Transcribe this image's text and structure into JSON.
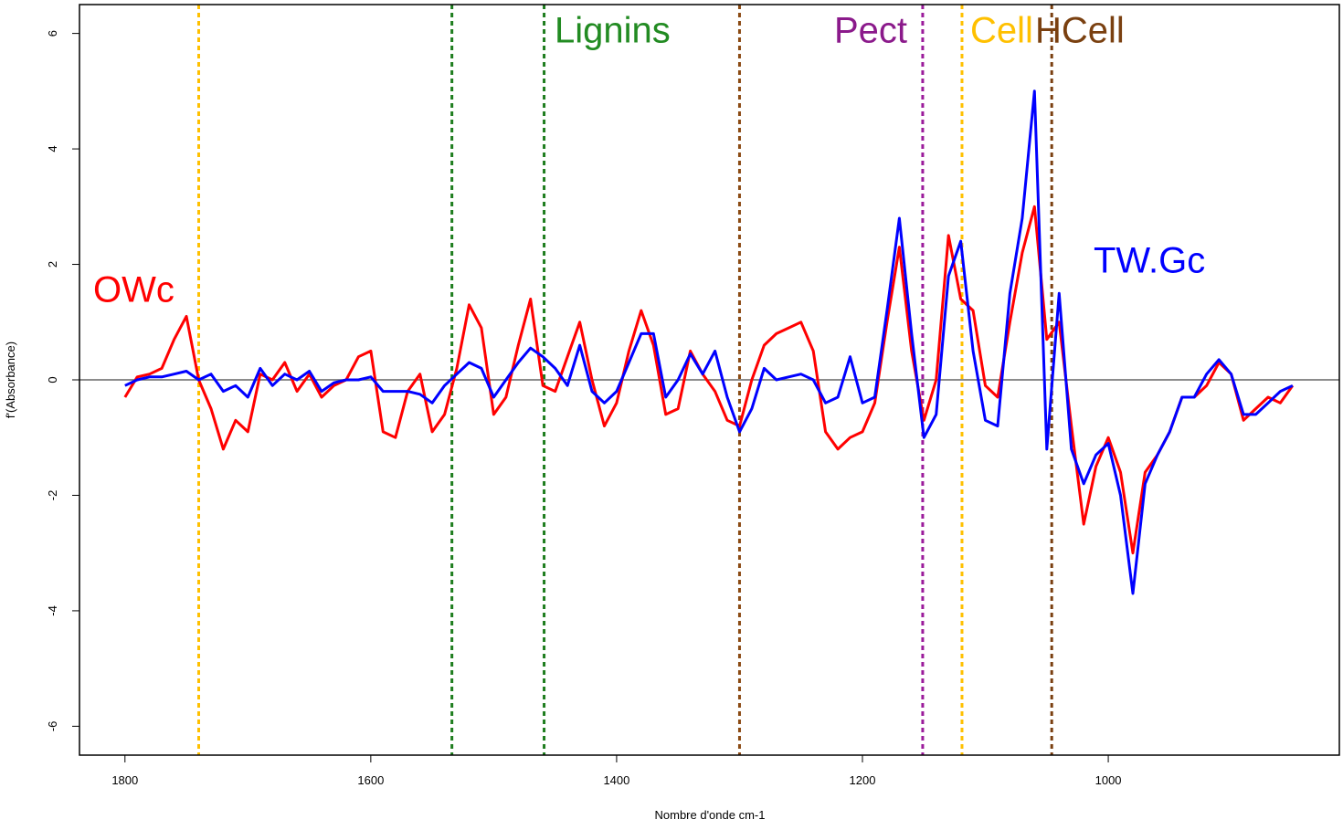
{
  "chart_data": {
    "type": "line",
    "x_label": "Nombre d'onde cm-1",
    "y_label": "f'(Absorbance)",
    "xlim": [
      1837,
      812
    ],
    "ylim": [
      -6.5,
      6.5
    ],
    "xticks": [
      1800,
      1600,
      1400,
      1200,
      1000
    ],
    "yticks": [
      -6,
      -4,
      -2,
      0,
      2,
      4,
      6
    ],
    "hline": 0,
    "x": [
      1800,
      1790,
      1780,
      1770,
      1760,
      1750,
      1740,
      1730,
      1720,
      1710,
      1700,
      1690,
      1680,
      1670,
      1660,
      1650,
      1640,
      1630,
      1620,
      1610,
      1600,
      1590,
      1580,
      1570,
      1560,
      1550,
      1540,
      1530,
      1520,
      1510,
      1500,
      1490,
      1480,
      1470,
      1460,
      1450,
      1440,
      1430,
      1420,
      1410,
      1400,
      1390,
      1380,
      1370,
      1360,
      1350,
      1340,
      1330,
      1320,
      1310,
      1300,
      1290,
      1280,
      1270,
      1260,
      1250,
      1240,
      1230,
      1220,
      1210,
      1200,
      1190,
      1180,
      1170,
      1160,
      1150,
      1140,
      1130,
      1120,
      1110,
      1100,
      1090,
      1080,
      1070,
      1060,
      1050,
      1040,
      1030,
      1020,
      1010,
      1000,
      990,
      980,
      970,
      960,
      950,
      940,
      930,
      920,
      910,
      900,
      890,
      880,
      870,
      860,
      850
    ],
    "series": [
      {
        "name": "OWc",
        "color": "#ff0000",
        "values": [
          -0.3,
          0.05,
          0.1,
          0.2,
          0.7,
          1.1,
          0.0,
          -0.5,
          -1.2,
          -0.7,
          -0.9,
          0.1,
          0.0,
          0.3,
          -0.2,
          0.1,
          -0.3,
          -0.1,
          0.0,
          0.4,
          0.5,
          -0.9,
          -1.0,
          -0.2,
          0.1,
          -0.9,
          -0.6,
          0.2,
          1.3,
          0.9,
          -0.6,
          -0.3,
          0.6,
          1.4,
          -0.1,
          -0.2,
          0.4,
          1.0,
          0.0,
          -0.8,
          -0.4,
          0.5,
          1.2,
          0.6,
          -0.6,
          -0.5,
          0.5,
          0.1,
          -0.2,
          -0.7,
          -0.8,
          0.0,
          0.6,
          0.8,
          0.9,
          1.0,
          0.5,
          -0.9,
          -1.2,
          -1.0,
          -0.9,
          -0.4,
          1.0,
          2.3,
          0.5,
          -0.7,
          0.0,
          2.5,
          1.4,
          1.2,
          -0.1,
          -0.3,
          1.0,
          2.2,
          3.0,
          0.7,
          1.0,
          -0.8,
          -2.5,
          -1.5,
          -1.0,
          -1.6,
          -3.0,
          -1.6,
          -1.3,
          -0.9,
          -0.3,
          -0.3,
          -0.1,
          0.3,
          0.1,
          -0.7,
          -0.5,
          -0.3,
          -0.4,
          -0.1
        ]
      },
      {
        "name": "TW.Gc",
        "color": "#0000ff",
        "values": [
          -0.1,
          0.0,
          0.05,
          0.05,
          0.1,
          0.15,
          0.0,
          0.1,
          -0.2,
          -0.1,
          -0.3,
          0.2,
          -0.1,
          0.1,
          0.0,
          0.15,
          -0.2,
          -0.05,
          0.0,
          0.0,
          0.05,
          -0.2,
          -0.2,
          -0.2,
          -0.25,
          -0.4,
          -0.1,
          0.1,
          0.3,
          0.2,
          -0.3,
          0.0,
          0.3,
          0.55,
          0.4,
          0.2,
          -0.1,
          0.6,
          -0.2,
          -0.4,
          -0.2,
          0.3,
          0.8,
          0.8,
          -0.3,
          0.0,
          0.45,
          0.1,
          0.5,
          -0.3,
          -0.9,
          -0.5,
          0.2,
          0.0,
          0.05,
          0.1,
          0.0,
          -0.4,
          -0.3,
          0.4,
          -0.4,
          -0.3,
          1.2,
          2.8,
          0.8,
          -1.0,
          -0.6,
          1.8,
          2.4,
          0.5,
          -0.7,
          -0.8,
          1.5,
          2.8,
          5.0,
          -1.2,
          1.5,
          -1.2,
          -1.8,
          -1.3,
          -1.1,
          -2.0,
          -3.7,
          -1.8,
          -1.3,
          -0.9,
          -0.3,
          -0.3,
          0.1,
          0.35,
          0.1,
          -0.6,
          -0.6,
          -0.4,
          -0.2,
          -0.1
        ]
      }
    ],
    "vlines": [
      {
        "x": 1740,
        "color": "#ffc000"
      },
      {
        "x": 1534,
        "color": "#1e7d1e"
      },
      {
        "x": 1459,
        "color": "#1e7d1e"
      },
      {
        "x": 1300,
        "color": "#8b4a13"
      },
      {
        "x": 1151,
        "color": "#9b1b9b"
      },
      {
        "x": 1119,
        "color": "#ffc000"
      },
      {
        "x": 1046,
        "color": "#7a3f10"
      }
    ],
    "annotations": [
      {
        "text": "Lignins",
        "color": "#228b22"
      },
      {
        "text": "Pect",
        "color": "#8b1a8b"
      },
      {
        "text": "Cell",
        "color": "#ffc000"
      },
      {
        "text": "HCell",
        "color": "#7a4010"
      }
    ]
  }
}
